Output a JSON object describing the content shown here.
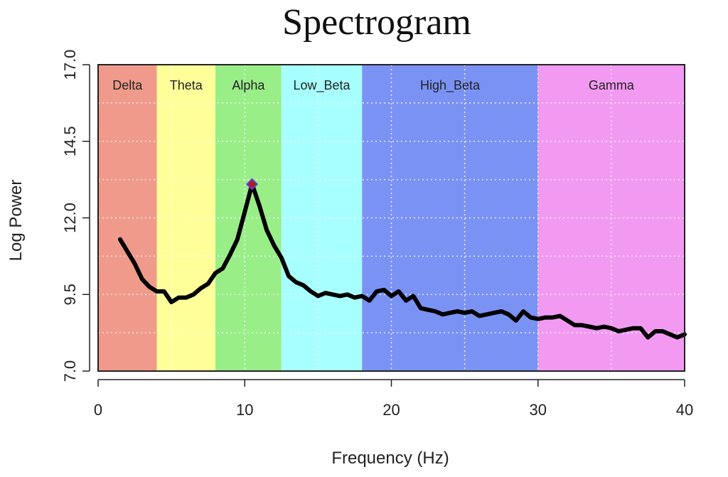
{
  "chart_data": {
    "type": "line",
    "title": "Spectrogram",
    "xlabel": "Frequency (Hz)",
    "ylabel": "Log Power",
    "xlim": [
      0,
      40
    ],
    "ylim": [
      7.0,
      17.0
    ],
    "x_ticks": [
      "0",
      "10",
      "20",
      "30",
      "40"
    ],
    "y_ticks": [
      "7.0",
      "9.5",
      "12.0",
      "14.5",
      "17.0"
    ],
    "grid": true,
    "bands": [
      {
        "name": "Delta",
        "from": 0,
        "to": 4,
        "color": "#ef9a8a"
      },
      {
        "name": "Theta",
        "from": 4,
        "to": 8,
        "color": "#ffff99"
      },
      {
        "name": "Alpha",
        "from": 8,
        "to": 12.5,
        "color": "#99ee88"
      },
      {
        "name": "Low_Beta",
        "from": 12.5,
        "to": 18,
        "color": "#a8ffff"
      },
      {
        "name": "High_Beta",
        "from": 18,
        "to": 30,
        "color": "#7b92f5"
      },
      {
        "name": "Gamma",
        "from": 30,
        "to": 40,
        "color": "#f29af2"
      }
    ],
    "series": [
      {
        "color": "#000000",
        "x": [
          1.5,
          2.0,
          2.5,
          3.0,
          3.5,
          4.0,
          4.5,
          5.0,
          5.5,
          6.0,
          6.5,
          7.0,
          7.5,
          8.0,
          8.5,
          9.0,
          9.5,
          10.0,
          10.5,
          11.0,
          11.5,
          12.0,
          12.5,
          13.0,
          13.5,
          14.0,
          14.5,
          15.0,
          15.5,
          16.0,
          16.5,
          17.0,
          17.5,
          18.0,
          18.5,
          19.0,
          19.5,
          20.0,
          20.5,
          21.0,
          21.5,
          22.0,
          22.5,
          23.0,
          23.5,
          24.0,
          24.5,
          25.0,
          25.5,
          26.0,
          26.5,
          27.0,
          27.5,
          28.0,
          28.5,
          29.0,
          29.5,
          30.0,
          30.5,
          31.0,
          31.5,
          32.0,
          32.5,
          33.0,
          33.5,
          34.0,
          34.5,
          35.0,
          35.5,
          36.0,
          36.5,
          37.0,
          37.5,
          38.0,
          38.5,
          39.0,
          39.5,
          40.0
        ],
        "y": [
          11.3,
          10.9,
          10.5,
          10.0,
          9.75,
          9.6,
          9.6,
          9.25,
          9.4,
          9.4,
          9.5,
          9.7,
          9.85,
          10.2,
          10.35,
          10.8,
          11.3,
          12.2,
          13.1,
          12.4,
          11.6,
          11.1,
          10.7,
          10.1,
          9.9,
          9.8,
          9.6,
          9.45,
          9.55,
          9.5,
          9.45,
          9.5,
          9.4,
          9.45,
          9.3,
          9.6,
          9.65,
          9.45,
          9.6,
          9.3,
          9.45,
          9.05,
          9.0,
          8.95,
          8.85,
          8.9,
          8.95,
          8.9,
          8.95,
          8.8,
          8.85,
          8.9,
          8.95,
          8.85,
          8.65,
          8.95,
          8.75,
          8.7,
          8.75,
          8.75,
          8.8,
          8.65,
          8.5,
          8.5,
          8.45,
          8.4,
          8.45,
          8.4,
          8.3,
          8.35,
          8.4,
          8.4,
          8.1,
          8.3,
          8.3,
          8.2,
          8.1,
          8.2
        ]
      }
    ],
    "peak": {
      "x": 10.5,
      "y": 13.1
    }
  }
}
